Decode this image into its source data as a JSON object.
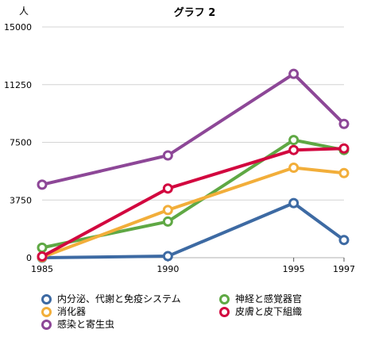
{
  "chart_data": {
    "type": "line",
    "title": "グラフ 2",
    "ylabel": "人",
    "xlabel": "",
    "x": [
      1985,
      1990,
      1995,
      1997
    ],
    "x_tick_labels": [
      "1985",
      "1990",
      "1995",
      "1997"
    ],
    "ylim": [
      0,
      15000
    ],
    "y_ticks": [
      0,
      3750,
      7500,
      11250,
      15000
    ],
    "y_tick_labels": [
      "0",
      "3750",
      "7500",
      "11250",
      "15000"
    ],
    "grid": "horizontal",
    "legend_position": "bottom",
    "series": [
      {
        "name": "内分泌、代謝と免疫システム",
        "color": "#3d6aa3",
        "values": [
          0,
          100,
          3550,
          1150
        ]
      },
      {
        "name": "神経と感覚器官",
        "color": "#5fa844",
        "values": [
          650,
          2350,
          7650,
          7000
        ]
      },
      {
        "name": "消化器",
        "color": "#f2ae3a",
        "values": [
          30,
          3100,
          5850,
          5500
        ]
      },
      {
        "name": "皮膚と皮下組織",
        "color": "#d2073f",
        "values": [
          80,
          4500,
          7000,
          7100
        ]
      },
      {
        "name": "感染と寄生虫",
        "color": "#8d4797",
        "values": [
          4750,
          6650,
          11950,
          8700
        ]
      }
    ]
  }
}
